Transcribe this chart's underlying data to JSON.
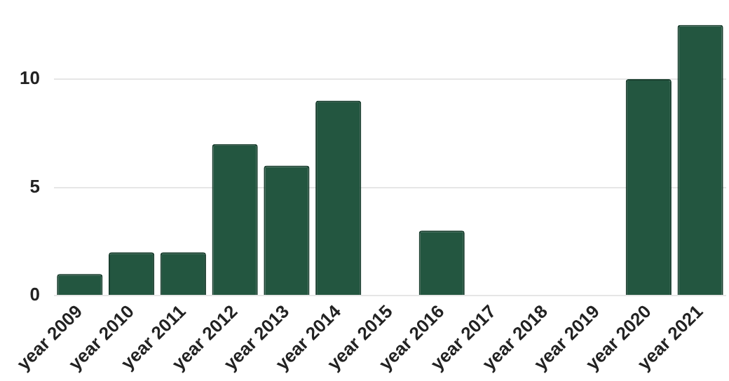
{
  "chart_data": {
    "type": "bar",
    "categories": [
      "year 2009",
      "year 2010",
      "year 2011",
      "year 2012",
      "year 2013",
      "year 2014",
      "year 2015",
      "year 2016",
      "year 2017",
      "year 2018",
      "year 2019",
      "year 2020",
      "year 2021"
    ],
    "values": [
      1,
      2,
      2,
      7,
      6,
      9,
      0,
      3,
      0,
      0,
      0,
      10,
      12.5
    ],
    "color": "#235640",
    "ylim": [
      0,
      12.5
    ],
    "yticks": [
      0,
      5,
      10
    ],
    "grid": "y"
  }
}
